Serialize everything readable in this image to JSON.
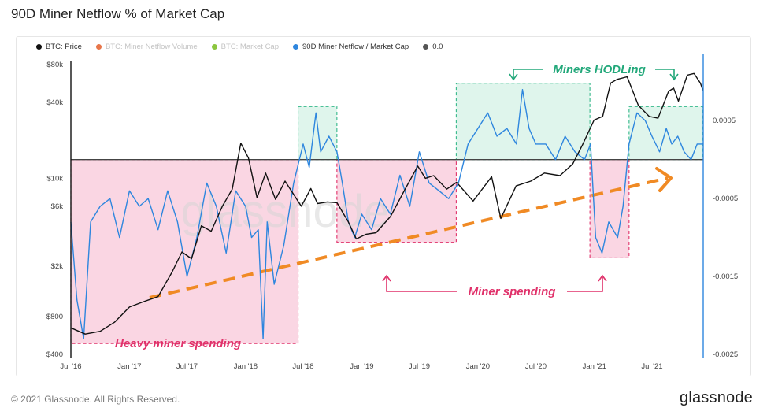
{
  "title": "90D Miner Netflow % of Market Cap",
  "legend": [
    {
      "label": "BTC: Price",
      "color": "#111111",
      "active": true
    },
    {
      "label": "BTC: Miner Netflow Volume",
      "color": "#e8764a",
      "active": false
    },
    {
      "label": "BTC: Market Cap",
      "color": "#8cc63f",
      "active": false
    },
    {
      "label": "90D Miner Netflow / Market Cap",
      "color": "#2e86de",
      "active": true
    },
    {
      "label": "0.0",
      "color": "#555555",
      "active": true
    }
  ],
  "footer": {
    "copyright": "© 2021 Glassnode. All Rights Reserved.",
    "logo": "glassnode"
  },
  "watermark": "glassnode",
  "colors": {
    "price": "#111111",
    "netflow": "#2e86de",
    "spending": "#f8c8da",
    "spending_border": "#e0316a",
    "hodl": "#d4f2e6",
    "hodl_border": "#35b88a",
    "trend": "#f08a24"
  },
  "chart_data": {
    "type": "line",
    "x_ticks": [
      "Jul '16",
      "Jan '17",
      "Jul '17",
      "Jan '18",
      "Jul '18",
      "Jan '19",
      "Jul '19",
      "Jan '20",
      "Jul '20",
      "Jan '21",
      "Jul '21"
    ],
    "y_left_ticks": [
      "$80k",
      "$40k",
      "$10k",
      "$6k",
      "$2k",
      "$800",
      "$400"
    ],
    "y_left_scale": "log",
    "y_right_ticks": [
      "0.0005",
      "-0.0005",
      "-0.0015",
      "-0.0025"
    ],
    "series": [
      {
        "name": "BTC: Price",
        "points": [
          [
            "2016-07-01",
            650
          ],
          [
            "2016-08-15",
            580
          ],
          [
            "2016-10-01",
            610
          ],
          [
            "2016-11-15",
            720
          ],
          [
            "2017-01-01",
            950
          ],
          [
            "2017-02-15",
            1050
          ],
          [
            "2017-04-01",
            1150
          ],
          [
            "2017-05-15",
            1800
          ],
          [
            "2017-06-15",
            2600
          ],
          [
            "2017-07-15",
            2300
          ],
          [
            "2017-08-15",
            4200
          ],
          [
            "2017-09-15",
            3800
          ],
          [
            "2017-10-20",
            6000
          ],
          [
            "2017-11-20",
            8200
          ],
          [
            "2017-12-17",
            19000
          ],
          [
            "2018-01-10",
            14500
          ],
          [
            "2018-02-06",
            7000
          ],
          [
            "2018-03-05",
            11000
          ],
          [
            "2018-04-05",
            6800
          ],
          [
            "2018-05-05",
            9500
          ],
          [
            "2018-06-25",
            6000
          ],
          [
            "2018-07-25",
            8300
          ],
          [
            "2018-08-15",
            6300
          ],
          [
            "2018-09-15",
            6500
          ],
          [
            "2018-10-15",
            6400
          ],
          [
            "2018-11-20",
            4500
          ],
          [
            "2018-12-15",
            3300
          ],
          [
            "2019-01-15",
            3600
          ],
          [
            "2019-02-15",
            3700
          ],
          [
            "2019-04-02",
            5000
          ],
          [
            "2019-05-15",
            8000
          ],
          [
            "2019-06-26",
            12500
          ],
          [
            "2019-07-20",
            10000
          ],
          [
            "2019-08-15",
            10500
          ],
          [
            "2019-09-25",
            8200
          ],
          [
            "2019-10-26",
            9300
          ],
          [
            "2019-12-17",
            6600
          ],
          [
            "2020-02-13",
            10300
          ],
          [
            "2020-03-13",
            4800
          ],
          [
            "2020-04-30",
            8700
          ],
          [
            "2020-06-15",
            9500
          ],
          [
            "2020-07-28",
            11000
          ],
          [
            "2020-09-15",
            10500
          ],
          [
            "2020-10-25",
            13000
          ],
          [
            "2020-11-25",
            18500
          ],
          [
            "2020-12-31",
            29000
          ],
          [
            "2021-01-27",
            31000
          ],
          [
            "2021-02-21",
            57000
          ],
          [
            "2021-03-13",
            61000
          ],
          [
            "2021-04-14",
            64000
          ],
          [
            "2021-05-19",
            38000
          ],
          [
            "2021-06-22",
            31000
          ],
          [
            "2021-07-20",
            30000
          ],
          [
            "2021-08-22",
            49000
          ],
          [
            "2021-09-07",
            52000
          ],
          [
            "2021-09-22",
            41000
          ],
          [
            "2021-10-20",
            66000
          ],
          [
            "2021-11-10",
            68000
          ],
          [
            "2021-11-30",
            57000
          ],
          [
            "2021-12-08",
            50000
          ]
        ]
      },
      {
        "name": "90D Miner Netflow / Market Cap",
        "points": [
          [
            "2016-07-01",
            -0.0008
          ],
          [
            "2016-07-20",
            -0.0018
          ],
          [
            "2016-08-10",
            -0.0023
          ],
          [
            "2016-09-01",
            -0.0008
          ],
          [
            "2016-10-01",
            -0.0006
          ],
          [
            "2016-11-01",
            -0.0005
          ],
          [
            "2016-12-01",
            -0.001
          ],
          [
            "2017-01-01",
            -0.0004
          ],
          [
            "2017-02-01",
            -0.0006
          ],
          [
            "2017-03-01",
            -0.0005
          ],
          [
            "2017-04-01",
            -0.0009
          ],
          [
            "2017-05-01",
            -0.0004
          ],
          [
            "2017-06-01",
            -0.0008
          ],
          [
            "2017-07-01",
            -0.0015
          ],
          [
            "2017-08-01",
            -0.001
          ],
          [
            "2017-09-01",
            -0.0003
          ],
          [
            "2017-10-01",
            -0.0006
          ],
          [
            "2017-11-01",
            -0.0012
          ],
          [
            "2017-12-01",
            -0.0004
          ],
          [
            "2018-01-01",
            -0.0006
          ],
          [
            "2018-01-20",
            -0.001
          ],
          [
            "2018-02-10",
            -0.0009
          ],
          [
            "2018-02-25",
            -0.0023
          ],
          [
            "2018-03-10",
            -0.0008
          ],
          [
            "2018-04-01",
            -0.0016
          ],
          [
            "2018-05-01",
            -0.0011
          ],
          [
            "2018-06-01",
            -0.0003
          ],
          [
            "2018-07-01",
            0.0002
          ],
          [
            "2018-07-20",
            -0.0001
          ],
          [
            "2018-08-10",
            0.0006
          ],
          [
            "2018-08-25",
            0.0001
          ],
          [
            "2018-09-20",
            0.0003
          ],
          [
            "2018-10-15",
            0.0001
          ],
          [
            "2018-11-01",
            -0.0003
          ],
          [
            "2018-11-20",
            -0.0008
          ],
          [
            "2018-12-10",
            -0.001
          ],
          [
            "2019-01-01",
            -0.0007
          ],
          [
            "2019-02-01",
            -0.0009
          ],
          [
            "2019-03-01",
            -0.0005
          ],
          [
            "2019-04-01",
            -0.0007
          ],
          [
            "2019-05-01",
            -0.0002
          ],
          [
            "2019-06-01",
            -0.0006
          ],
          [
            "2019-07-01",
            0.0001
          ],
          [
            "2019-08-01",
            -0.0003
          ],
          [
            "2019-09-01",
            -0.0004
          ],
          [
            "2019-10-01",
            -0.0005
          ],
          [
            "2019-11-01",
            -0.0003
          ],
          [
            "2019-12-01",
            0.0002
          ],
          [
            "2020-01-01",
            0.0004
          ],
          [
            "2020-02-01",
            0.0006
          ],
          [
            "2020-03-01",
            0.0003
          ],
          [
            "2020-04-01",
            0.0004
          ],
          [
            "2020-05-01",
            0.0002
          ],
          [
            "2020-05-20",
            0.0009
          ],
          [
            "2020-06-10",
            0.0004
          ],
          [
            "2020-07-01",
            0.0002
          ],
          [
            "2020-08-01",
            0.0002
          ],
          [
            "2020-09-01",
            0.0
          ],
          [
            "2020-10-01",
            0.0003
          ],
          [
            "2020-11-01",
            0.0001
          ],
          [
            "2020-12-01",
            0.0
          ],
          [
            "2020-12-20",
            0.0002
          ],
          [
            "2021-01-05",
            -0.001
          ],
          [
            "2021-01-25",
            -0.0012
          ],
          [
            "2021-02-15",
            -0.0008
          ],
          [
            "2021-03-15",
            -0.001
          ],
          [
            "2021-04-01",
            -0.0006
          ],
          [
            "2021-04-20",
            0.0002
          ],
          [
            "2021-05-15",
            0.0006
          ],
          [
            "2021-06-10",
            0.0005
          ],
          [
            "2021-07-01",
            0.0003
          ],
          [
            "2021-07-25",
            0.0001
          ],
          [
            "2021-08-15",
            0.0004
          ],
          [
            "2021-09-01",
            0.0002
          ],
          [
            "2021-09-20",
            0.0003
          ],
          [
            "2021-10-10",
            0.0001
          ],
          [
            "2021-11-01",
            0.0
          ],
          [
            "2021-11-20",
            0.0002
          ],
          [
            "2021-12-08",
            0.0002
          ]
        ]
      }
    ],
    "zero_line": 0.0,
    "annotations": [
      {
        "text": "Heavy miner spending",
        "color": "#e0316a"
      },
      {
        "text": "Miner spending",
        "color": "#e0316a"
      },
      {
        "text": "Miners HODLing",
        "color": "#22a87a"
      }
    ],
    "shaded_regions": [
      {
        "kind": "spending",
        "start": "2016-07-01",
        "end": "2018-06-15"
      },
      {
        "kind": "hodl",
        "start": "2018-06-15",
        "end": "2018-10-15"
      },
      {
        "kind": "spending",
        "start": "2018-10-15",
        "end": "2019-10-25"
      },
      {
        "kind": "hodl",
        "start": "2019-10-25",
        "end": "2020-12-18"
      },
      {
        "kind": "spending",
        "start": "2020-12-18",
        "end": "2021-04-20"
      },
      {
        "kind": "hodl",
        "start": "2021-04-20",
        "end": "2021-12-08"
      }
    ]
  }
}
